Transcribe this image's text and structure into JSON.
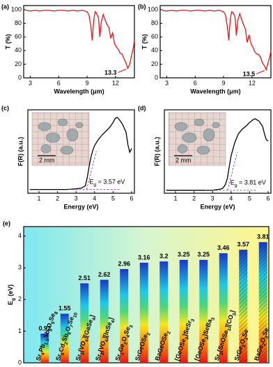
{
  "chart_data": [
    {
      "type": "line",
      "panel": "(a)",
      "x_label": "Wavelength (μm)",
      "y_label": "T (%)",
      "color": "#e8141b",
      "x": [
        2.5,
        3,
        3.5,
        4,
        4.5,
        5,
        5.5,
        6,
        6.5,
        7,
        7.5,
        8,
        8.5,
        9,
        9.2,
        9.4,
        9.55,
        9.7,
        9.85,
        10,
        10.2,
        10.35,
        10.5,
        10.7,
        10.9,
        11.1,
        11.3,
        11.5,
        11.7,
        11.9,
        12.1,
        12.3,
        12.5,
        12.7,
        12.9,
        13.1,
        13.3,
        13.5,
        13.7,
        13.9,
        14
      ],
      "values": [
        99,
        98,
        99,
        98,
        99,
        99,
        98,
        99,
        99,
        98,
        99,
        98,
        99,
        97,
        92,
        75,
        55,
        85,
        97,
        95,
        88,
        60,
        82,
        93,
        85,
        78,
        74,
        58,
        66,
        50,
        45,
        42,
        36,
        35,
        28,
        22,
        14,
        20,
        33,
        45,
        55
      ],
      "xlim": [
        2.3,
        14
      ],
      "xticks": [
        3,
        6,
        9,
        12
      ],
      "ylim": [
        0,
        106
      ],
      "yticks": [
        0,
        20,
        40,
        60,
        80,
        100
      ],
      "annotation": {
        "value": 13.3,
        "label": "13.3"
      }
    },
    {
      "type": "line",
      "panel": "(b)",
      "x_label": "Wavelength (μm)",
      "y_label": "T (%)",
      "color": "#e8141b",
      "x": [
        2.5,
        3,
        3.5,
        4,
        4.5,
        5,
        5.5,
        6,
        6.5,
        7,
        7.5,
        8,
        8.5,
        9,
        9.2,
        9.4,
        9.55,
        9.7,
        9.85,
        10,
        10.2,
        10.35,
        10.5,
        10.7,
        10.9,
        11.1,
        11.3,
        11.5,
        11.7,
        11.9,
        12.1,
        12.3,
        12.5,
        12.7,
        12.9,
        13.1,
        13.3,
        13.5,
        13.7,
        13.9,
        14
      ],
      "values": [
        99,
        98,
        99,
        98,
        99,
        99,
        98,
        99,
        99,
        98,
        99,
        98,
        99,
        97,
        92,
        75,
        55,
        85,
        97,
        96,
        90,
        62,
        84,
        94,
        86,
        78,
        72,
        52,
        63,
        50,
        45,
        38,
        35,
        34,
        30,
        22,
        18,
        12,
        22,
        32,
        40
      ],
      "xlim": [
        2.3,
        14
      ],
      "xticks": [
        3,
        6,
        9,
        12
      ],
      "ylim": [
        0,
        106
      ],
      "yticks": [
        0,
        20,
        40,
        60,
        80,
        100
      ],
      "annotation": {
        "value": 13.5,
        "label": "13.5"
      }
    },
    {
      "type": "absorption",
      "panel": "(c)",
      "x_label": "Energy (eV)",
      "y_label": "F(R) (a.u.)",
      "color": "#000000",
      "inset_label": "2 mm",
      "x": [
        0.5,
        1,
        1.5,
        2,
        2.5,
        3,
        3.3,
        3.5,
        3.6,
        3.7,
        3.8,
        3.9,
        4,
        4.2,
        4.4,
        4.6,
        4.8,
        5,
        5.1,
        5.2,
        5.3,
        5.5,
        5.7,
        5.8,
        5.9,
        6
      ],
      "values": [
        0.05,
        0.05,
        0.05,
        0.05,
        0.05,
        0.06,
        0.07,
        0.1,
        0.2,
        0.35,
        0.48,
        0.57,
        0.64,
        0.72,
        0.78,
        0.83,
        0.88,
        0.95,
        1.0,
        1.02,
        1.0,
        0.93,
        0.82,
        0.65,
        0.55,
        0.6
      ],
      "xlim": [
        0.4,
        6.15
      ],
      "xticks": [
        1,
        2,
        3,
        4,
        5,
        6
      ],
      "ylim": [
        0,
        1.12
      ],
      "annotation": {
        "value": 3.57,
        "label": "Eg = 3.57 eV"
      }
    },
    {
      "type": "absorption",
      "panel": "(d)",
      "x_label": "Energy (eV)",
      "y_label": "F(R) (a.u.)",
      "color": "#000000",
      "inset_label": "2 mm",
      "x": [
        0.5,
        1,
        1.5,
        2,
        2.5,
        3,
        3.3,
        3.5,
        3.6,
        3.7,
        3.8,
        3.9,
        4,
        4.2,
        4.4,
        4.6,
        4.8,
        5,
        5.1,
        5.2,
        5.3,
        5.5,
        5.7,
        5.8,
        5.9,
        6
      ],
      "values": [
        0.04,
        0.04,
        0.04,
        0.04,
        0.04,
        0.04,
        0.05,
        0.06,
        0.08,
        0.12,
        0.2,
        0.35,
        0.5,
        0.68,
        0.8,
        0.86,
        0.9,
        0.95,
        0.97,
        0.99,
        1.0,
        0.97,
        0.9,
        0.8,
        0.72,
        0.7
      ],
      "xlim": [
        0.4,
        6.15
      ],
      "xticks": [
        1,
        2,
        3,
        4,
        5,
        6
      ],
      "ylim": [
        0,
        1.12
      ],
      "annotation": {
        "value": 3.81,
        "label": "Eg = 3.81 eV"
      }
    },
    {
      "type": "bar",
      "panel": "(e)",
      "y_label": "Eg (eV)",
      "categories": [
        "Sr4Pb1.5Sb5O5Se8",
        "Sr6Cd2Sb6O7Se10",
        "Sr3[VO4][GaSe4]",
        "Sr3[VO4][InSe4]",
        "Sr3Ge2O4Se3",
        "SrGeOSe2",
        "BaGeOSe2",
        "[GeOSe3]SeSr3",
        "[GeOSe3]SeBa3",
        "Sr3[SnOSe3][CO3]",
        "SrGe2O3Se",
        "BaGe2O3Se"
      ],
      "values": [
        0.92,
        1.55,
        2.51,
        2.62,
        2.96,
        3.16,
        3.2,
        3.25,
        3.25,
        3.46,
        3.57,
        3.81
      ],
      "label_colors": [
        "#000000",
        "#000000",
        "#000000",
        "#000000",
        "#000000",
        "#000000",
        "#000000",
        "#000000",
        "#000000",
        "#000000",
        "#e8141b",
        "#e8141b"
      ],
      "hatched": [
        false,
        false,
        false,
        false,
        false,
        false,
        false,
        false,
        false,
        false,
        true,
        true
      ],
      "ylim": [
        0,
        4.3
      ],
      "yticks": [
        0,
        1,
        2,
        3,
        4
      ]
    }
  ]
}
